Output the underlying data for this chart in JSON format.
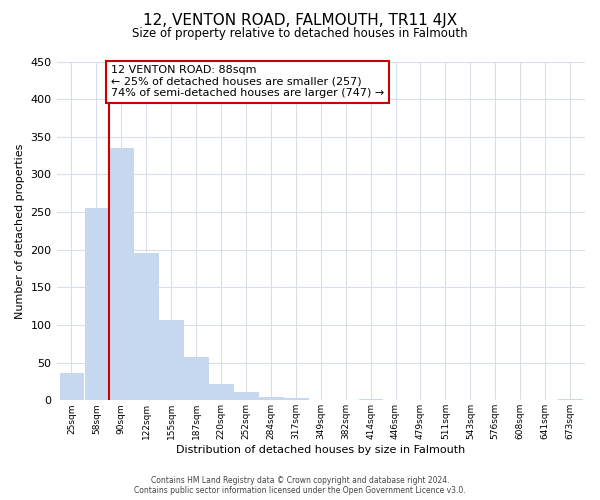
{
  "title": "12, VENTON ROAD, FALMOUTH, TR11 4JX",
  "subtitle": "Size of property relative to detached houses in Falmouth",
  "xlabel": "Distribution of detached houses by size in Falmouth",
  "ylabel": "Number of detached properties",
  "bar_labels": [
    "25sqm",
    "58sqm",
    "90sqm",
    "122sqm",
    "155sqm",
    "187sqm",
    "220sqm",
    "252sqm",
    "284sqm",
    "317sqm",
    "349sqm",
    "382sqm",
    "414sqm",
    "446sqm",
    "479sqm",
    "511sqm",
    "543sqm",
    "576sqm",
    "608sqm",
    "641sqm",
    "673sqm"
  ],
  "bar_values": [
    36,
    255,
    335,
    196,
    106,
    57,
    21,
    11,
    5,
    3,
    0,
    0,
    2,
    0,
    0,
    0,
    0,
    0,
    0,
    0,
    2
  ],
  "bar_color": "#c5d8ef",
  "highlight_bar_index": 2,
  "annotation_title": "12 VENTON ROAD: 88sqm",
  "annotation_line1": "← 25% of detached houses are smaller (257)",
  "annotation_line2": "74% of semi-detached houses are larger (747) →",
  "annotation_box_color": "#ffffff",
  "annotation_box_edge_color": "#cc0000",
  "vline_color": "#cc0000",
  "ylim": [
    0,
    450
  ],
  "yticks": [
    0,
    50,
    100,
    150,
    200,
    250,
    300,
    350,
    400,
    450
  ],
  "footer_line1": "Contains HM Land Registry data © Crown copyright and database right 2024.",
  "footer_line2": "Contains public sector information licensed under the Open Government Licence v3.0.",
  "background_color": "#ffffff",
  "grid_color": "#d8dde8"
}
